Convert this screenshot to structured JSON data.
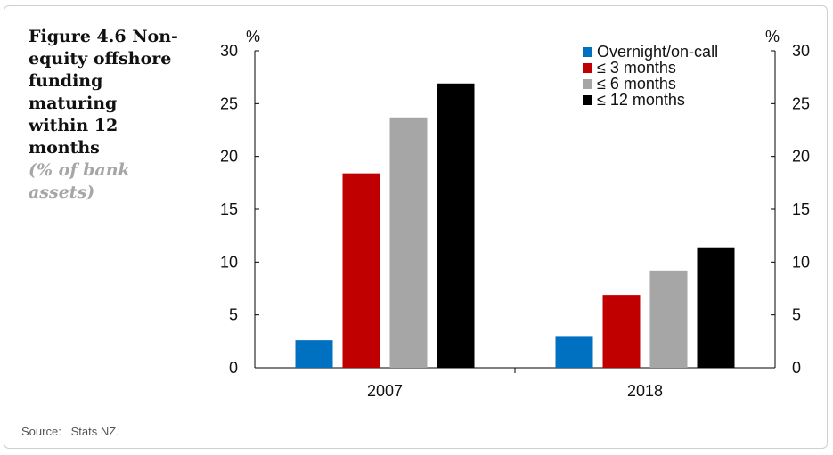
{
  "figure": {
    "title": "Figure 4.6 Non-equity offshore funding maturing within 12 months",
    "subtitle": "(% of bank assets)",
    "source": "Source:   Stats NZ."
  },
  "chart_data": {
    "type": "bar",
    "categories": [
      "2007",
      "2018"
    ],
    "series": [
      {
        "name": "Overnight/on-call",
        "color": "#0070c0",
        "values": [
          2.6,
          3.0
        ]
      },
      {
        "name": "≤ 3 months",
        "color": "#c00000",
        "values": [
          18.4,
          6.9
        ]
      },
      {
        "name": "≤ 6 months",
        "color": "#a6a6a6",
        "values": [
          23.7,
          9.2
        ]
      },
      {
        "name": "≤ 12 months",
        "color": "#000000",
        "values": [
          26.9,
          11.4
        ]
      }
    ],
    "ylabel_left": "%",
    "ylabel_right": "%",
    "ylim": [
      0,
      30
    ],
    "yticks": [
      0,
      5,
      10,
      15,
      20,
      25,
      30
    ],
    "legend_position": "top-right",
    "grid": false
  }
}
